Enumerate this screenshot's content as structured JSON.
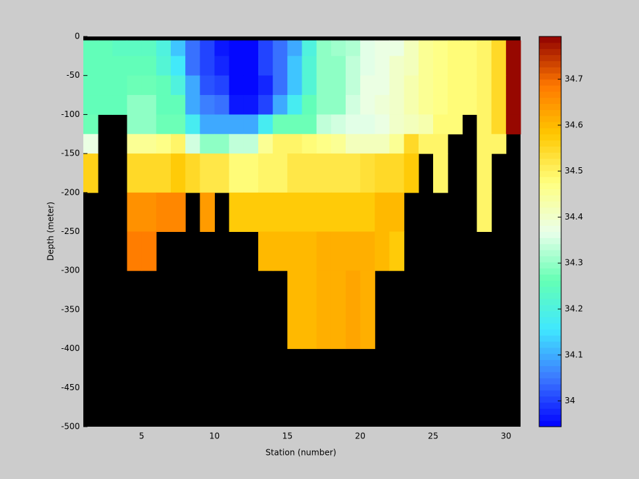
{
  "chart_data": {
    "type": "heatmap",
    "xlabel": "Station (number)",
    "ylabel": "Depth (meter)",
    "xlim": [
      1,
      31
    ],
    "ylim": [
      -500,
      0
    ],
    "xticks": [
      5,
      10,
      15,
      20,
      25,
      30
    ],
    "yticks": [
      0,
      -50,
      -100,
      -150,
      -200,
      -250,
      -300,
      -350,
      -400,
      -450,
      -500
    ],
    "background": "#000000",
    "x_edges": [
      1,
      2,
      3,
      4,
      5,
      6,
      7,
      8,
      9,
      10,
      11,
      12,
      13,
      14,
      15,
      16,
      17,
      18,
      19,
      20,
      21,
      22,
      23,
      24,
      25,
      26,
      27,
      28,
      29,
      30,
      31
    ],
    "y_edges": [
      -5,
      -25,
      -50,
      -75,
      -100,
      -125,
      -150,
      -200,
      -250,
      -300,
      -400
    ],
    "values": [
      [
        34.25,
        34.25,
        34.24,
        34.24,
        34.24,
        34.2,
        34.12,
        34.05,
        34.0,
        33.97,
        33.95,
        33.95,
        34.0,
        34.05,
        34.1,
        34.2,
        34.3,
        34.31,
        34.32,
        34.36,
        34.37,
        34.38,
        34.42,
        34.45,
        34.47,
        34.48,
        34.48,
        34.5,
        34.55,
        34.78
      ],
      [
        34.25,
        34.25,
        34.25,
        34.26,
        34.26,
        34.22,
        34.16,
        34.05,
        34.0,
        33.98,
        33.95,
        33.95,
        34.0,
        34.05,
        34.12,
        34.22,
        34.3,
        34.3,
        34.33,
        34.36,
        34.38,
        34.4,
        34.42,
        34.45,
        34.47,
        34.48,
        34.48,
        34.5,
        34.55,
        34.78
      ],
      [
        34.25,
        34.25,
        34.25,
        34.27,
        34.27,
        34.25,
        34.2,
        34.1,
        34.02,
        34.0,
        33.95,
        33.95,
        33.98,
        34.05,
        34.12,
        34.22,
        34.3,
        34.3,
        34.34,
        34.37,
        34.38,
        34.4,
        34.43,
        34.45,
        34.47,
        34.48,
        34.48,
        34.5,
        34.55,
        34.78
      ],
      [
        34.25,
        34.25,
        34.25,
        34.29,
        34.29,
        34.26,
        34.26,
        34.1,
        34.06,
        34.04,
        33.97,
        33.97,
        34.0,
        34.1,
        34.18,
        34.25,
        34.3,
        34.3,
        34.35,
        34.38,
        34.39,
        34.4,
        34.43,
        34.45,
        34.47,
        34.48,
        34.48,
        34.5,
        34.55,
        34.78
      ],
      [
        34.27,
        null,
        null,
        34.29,
        34.29,
        34.27,
        34.27,
        34.17,
        34.1,
        34.1,
        34.1,
        34.1,
        34.18,
        34.27,
        34.27,
        34.27,
        34.33,
        34.35,
        34.36,
        34.36,
        34.37,
        34.4,
        34.42,
        34.43,
        34.48,
        34.48,
        null,
        34.5,
        34.55,
        34.78
      ],
      [
        34.38,
        null,
        null,
        34.45,
        34.45,
        34.47,
        34.5,
        34.35,
        34.3,
        34.3,
        34.33,
        34.33,
        34.45,
        34.5,
        34.5,
        34.48,
        34.47,
        34.45,
        34.42,
        34.42,
        34.42,
        34.45,
        34.55,
        34.5,
        34.5,
        null,
        null,
        34.5,
        34.5,
        null
      ],
      [
        34.56,
        null,
        null,
        34.55,
        34.55,
        34.55,
        34.57,
        34.55,
        34.52,
        34.52,
        34.48,
        34.48,
        34.5,
        34.5,
        34.52,
        34.52,
        34.52,
        34.52,
        34.52,
        34.53,
        34.55,
        34.55,
        34.57,
        null,
        34.5,
        null,
        null,
        34.5,
        null,
        null
      ],
      [
        null,
        null,
        null,
        34.65,
        34.65,
        34.67,
        34.67,
        null,
        34.64,
        null,
        34.58,
        34.58,
        34.57,
        34.57,
        34.58,
        34.58,
        34.58,
        34.58,
        34.58,
        34.57,
        34.6,
        34.6,
        null,
        null,
        null,
        null,
        null,
        34.5,
        null,
        null
      ],
      [
        null,
        null,
        null,
        34.68,
        34.68,
        null,
        null,
        null,
        null,
        null,
        null,
        null,
        34.6,
        34.6,
        34.6,
        34.6,
        34.62,
        34.62,
        34.62,
        34.62,
        34.6,
        34.57,
        null,
        null,
        null,
        null,
        null,
        null,
        null,
        null
      ],
      [
        null,
        null,
        null,
        null,
        null,
        null,
        null,
        null,
        null,
        null,
        null,
        null,
        null,
        null,
        34.6,
        34.6,
        34.62,
        34.61,
        34.63,
        34.62,
        null,
        null,
        null,
        null,
        null,
        null,
        null,
        null,
        null,
        null
      ]
    ],
    "clim": [
      33.944,
      34.793
    ],
    "cticks": [
      34,
      34.1,
      34.2,
      34.3,
      34.4,
      34.5,
      34.6,
      34.7
    ],
    "colormap": [
      "#0000ff",
      "#3c78ff",
      "#40e8ff",
      "#64ffb4",
      "#eaffea",
      "#ffff80",
      "#ffc800",
      "#ff7800",
      "#900000"
    ]
  }
}
